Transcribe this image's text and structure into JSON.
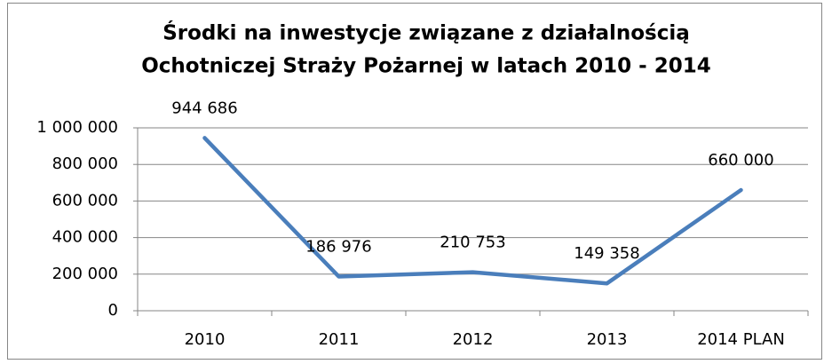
{
  "chart_data": {
    "type": "line",
    "title": [
      "Środki na inwestycje związane z działalnością",
      "Ochotniczej Straży Pożarnej w latach 2010 - 2014"
    ],
    "categories": [
      "2010",
      "2011",
      "2012",
      "2013",
      "2014 PLAN"
    ],
    "values": [
      944686,
      186976,
      210753,
      149358,
      660000
    ],
    "value_labels": [
      "944 686",
      "186 976",
      "210 753",
      "149 358",
      "660 000"
    ],
    "color": "#4a7ebb",
    "ylim": [
      0,
      1000000
    ],
    "yticks": [
      0,
      {
        "value": 200000,
        "label": "200 000"
      },
      {
        "value": 400000,
        "label": "400 000"
      },
      {
        "value": 600000,
        "label": "600 000"
      },
      {
        "value": 800000,
        "label": "800 000"
      },
      {
        "value": 1000000,
        "label": "1 000 000"
      }
    ],
    "grid": true
  }
}
